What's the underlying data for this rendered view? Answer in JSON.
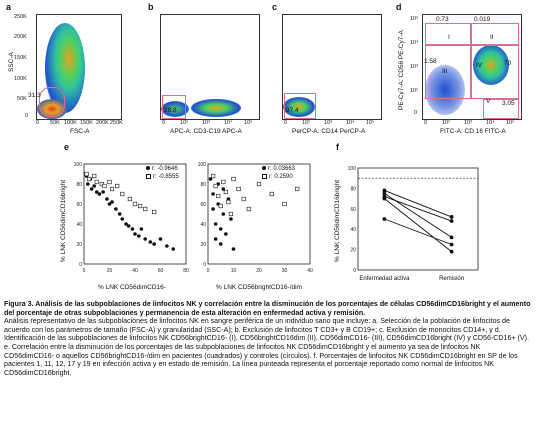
{
  "panels": {
    "a": {
      "letter": "a",
      "ylabel": "SSC-A",
      "xlabel": "FSC-A",
      "gate_value": "31.3",
      "yticks": [
        "250K",
        "200K",
        "150K",
        "100K",
        "50K",
        "0"
      ],
      "xticks": [
        "0",
        "50K",
        "100K",
        "150K",
        "200K",
        "250K"
      ]
    },
    "b": {
      "letter": "b",
      "xlabel": "APC-A: CD3-C19 APC-A",
      "gate_value": "28.8",
      "xticks": [
        "0",
        "10²",
        "10³",
        "10⁴",
        "10⁵"
      ]
    },
    "c": {
      "letter": "c",
      "xlabel": "PerCP-A: CD14 PerCP-A",
      "gate_value": "97.4",
      "xticks": [
        "0",
        "10²",
        "10³",
        "10⁴",
        "10⁵"
      ]
    },
    "d": {
      "letter": "d",
      "ylabel": "PE-Cy7-A: CD56 PE-Cy7-A",
      "xlabel": "FITC-A: CD 16 FITC-A",
      "gates": {
        "i": "I",
        "ii": "II",
        "iii": "III",
        "iv": "IV",
        "v": "V"
      },
      "values": {
        "i": "0.73",
        "ii": "0.019",
        "iii": "1.58",
        "iv": "70",
        "v": "3.05"
      },
      "yticks": [
        "10⁵",
        "10⁴",
        "10³",
        "10²",
        "0"
      ],
      "xticks": [
        "0",
        "10²",
        "10³",
        "10⁴",
        "10⁵"
      ]
    },
    "e": {
      "letter": "e",
      "ylabel": "% LNK CD56dimCD16bright",
      "xlabel_left": "% LNK CD56dimCD16-",
      "xlabel_right": "% LNK CD56brightCD16-/dim",
      "legend_left": {
        "filled": "r: -0.9646",
        "open": "r: -0.8555"
      },
      "legend_right": {
        "filled": "r: 0.03663",
        "open": "r: 0.2590"
      }
    },
    "f": {
      "letter": "f",
      "ylabel": "% LNK CD56dimCD16bright",
      "categories": [
        "Enfermedad activa",
        "Remisión"
      ],
      "yticks": [
        "100",
        "80",
        "60",
        "40",
        "20",
        "0"
      ]
    }
  },
  "chart_data": [
    {
      "type": "scatter",
      "panel": "e-left",
      "ylim": [
        0,
        100
      ],
      "xlim": [
        0,
        80
      ],
      "xticks": [
        "0",
        "20",
        "40",
        "60",
        "80"
      ],
      "yticks": [
        "0",
        "20",
        "40",
        "60",
        "80",
        "100"
      ],
      "series": [
        {
          "name": "r: -0.9646",
          "marker": "filled",
          "points": [
            [
              2,
              88
            ],
            [
              3,
              80
            ],
            [
              5,
              85
            ],
            [
              6,
              75
            ],
            [
              8,
              78
            ],
            [
              10,
              72
            ],
            [
              12,
              70
            ],
            [
              15,
              72
            ],
            [
              18,
              65
            ],
            [
              20,
              60
            ],
            [
              22,
              62
            ],
            [
              25,
              55
            ],
            [
              28,
              50
            ],
            [
              30,
              45
            ],
            [
              33,
              40
            ],
            [
              35,
              38
            ],
            [
              38,
              35
            ],
            [
              40,
              30
            ],
            [
              43,
              28
            ],
            [
              45,
              35
            ],
            [
              48,
              25
            ],
            [
              52,
              22
            ],
            [
              55,
              20
            ],
            [
              60,
              25
            ],
            [
              65,
              18
            ],
            [
              70,
              15
            ]
          ]
        },
        {
          "name": "r: -0.8555",
          "marker": "open",
          "points": [
            [
              2,
              90
            ],
            [
              4,
              85
            ],
            [
              8,
              88
            ],
            [
              10,
              82
            ],
            [
              14,
              80
            ],
            [
              16,
              78
            ],
            [
              20,
              82
            ],
            [
              22,
              75
            ],
            [
              26,
              78
            ],
            [
              30,
              70
            ],
            [
              36,
              65
            ],
            [
              40,
              60
            ],
            [
              44,
              58
            ],
            [
              48,
              55
            ],
            [
              55,
              52
            ]
          ]
        }
      ]
    },
    {
      "type": "scatter",
      "panel": "e-right",
      "ylim": [
        0,
        100
      ],
      "xlim": [
        0,
        40
      ],
      "xticks": [
        "0",
        "10",
        "20",
        "30",
        "40"
      ],
      "yticks": [
        "0",
        "20",
        "40",
        "60",
        "80",
        "100"
      ],
      "series": [
        {
          "name": "r: 0.03663",
          "marker": "filled",
          "points": [
            [
              1,
              85
            ],
            [
              2,
              70
            ],
            [
              2,
              55
            ],
            [
              3,
              40
            ],
            [
              3,
              25
            ],
            [
              4,
              80
            ],
            [
              4,
              60
            ],
            [
              5,
              35
            ],
            [
              5,
              20
            ],
            [
              6,
              75
            ],
            [
              6,
              50
            ],
            [
              7,
              30
            ],
            [
              8,
              65
            ],
            [
              9,
              45
            ],
            [
              10,
              15
            ]
          ]
        },
        {
          "name": "r: 0.2590",
          "marker": "open",
          "points": [
            [
              2,
              88
            ],
            [
              3,
              78
            ],
            [
              4,
              68
            ],
            [
              5,
              58
            ],
            [
              6,
              82
            ],
            [
              7,
              72
            ],
            [
              8,
              62
            ],
            [
              9,
              50
            ],
            [
              10,
              85
            ],
            [
              12,
              75
            ],
            [
              14,
              65
            ],
            [
              16,
              55
            ],
            [
              20,
              80
            ],
            [
              25,
              70
            ],
            [
              30,
              60
            ],
            [
              35,
              75
            ]
          ]
        }
      ]
    },
    {
      "type": "line",
      "panel": "f",
      "categories": [
        "Enfermedad activa",
        "Remisión"
      ],
      "ylim": [
        0,
        100
      ],
      "reference_line": 90,
      "series": [
        {
          "values": [
            78,
            52
          ]
        },
        {
          "values": [
            75,
            32
          ]
        },
        {
          "values": [
            72,
            48
          ]
        },
        {
          "values": [
            70,
            18
          ]
        },
        {
          "values": [
            50,
            25
          ]
        }
      ]
    }
  ],
  "caption": {
    "title_prefix": "Figura 3.",
    "title_text": " Análisis de las subpoblaciones de linfocitos NK y correlación entre la disminución de los porcentajes de células CD56dimCD16bright y el aumento del porcentaje de otras subpoblaciones y permanencia de esta alteración en enfermedad activa y remisión.",
    "body": "Análisis representativo de las subpoblaciones de linfocitos NK en sangre periférica de un individuo sano que incluye: a. Selección de la población de linfocitos de acuerdo con los parámetros de tamaño (FSC-A) y granularidad (SSC-A); b. Exclusión de linfocitos T CD3+ y B CD19+; c. Exclusión de monocitos CD14+, y d. Identificación de las subpoblaciones de linfocitos NK CD56brightCD16- (I), CD56brightCD16dim (II), CD56dimCD16- (III), CD56dimCD16bright (IV) y CD56-CD16+ (V). e. Correlación entre la disminución de los porcentajes de las subpoblaciones de linfocitos NK CD56dimCD16bright y el aumento ya sea de linfocitos NK CD56dimCD16- o aquellos CD56brightCD16-/dim en pacientes (cuadrados) y controles (círculos). f. Porcentajes de linfocitos NK CD56dimCD16bright en SP de los pacientes 1, 11, 12, 17 y 19 en infección activa y en estado de remisión. La línea punteada representa el porcentaje reportado como normal de linfocitos NK CD56dimCD16bright."
  },
  "colors": {
    "gate": "#d8708e",
    "density_hi": "#e8a020",
    "density_mid": "#30c0a0",
    "density_lo": "#2050d0"
  }
}
